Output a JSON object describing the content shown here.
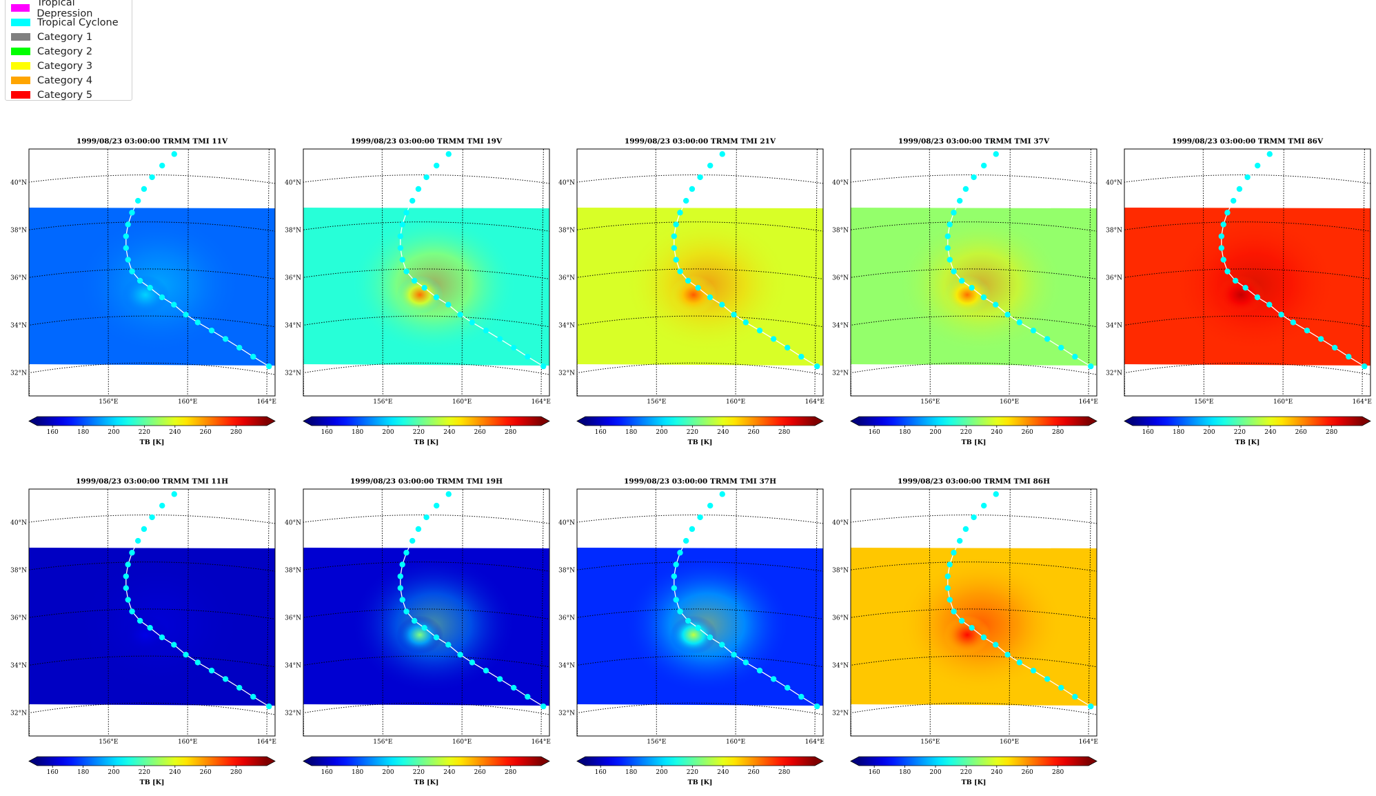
{
  "legend": {
    "items": [
      {
        "label": "Tropical Depression",
        "color": "#ff00ff"
      },
      {
        "label": "Tropical Cyclone",
        "color": "#00ffff"
      },
      {
        "label": "Category 1",
        "color": "#808080"
      },
      {
        "label": "Category 2",
        "color": "#00ff00"
      },
      {
        "label": "Category 3",
        "color": "#ffff00"
      },
      {
        "label": "Category 4",
        "color": "#ffa500"
      },
      {
        "label": "Category 5",
        "color": "#ff0000"
      }
    ]
  },
  "chart_data": [
    {
      "type": "heatmap",
      "title": "1999/08/23 03:00:00  TRMM TMI 11V",
      "colorbar_label": "TB [K]",
      "clim": [
        150,
        300
      ],
      "colorbar_ticks": [
        160,
        180,
        200,
        220,
        240,
        260,
        280
      ],
      "lat_ticks": [
        "32°N",
        "34°N",
        "36°N",
        "38°N",
        "40°N"
      ],
      "lon_ticks": [
        "156°E",
        "160°E",
        "164°E"
      ],
      "background_tb": 184,
      "core_tb": 200,
      "grid": true
    },
    {
      "type": "heatmap",
      "title": "1999/08/23 03:00:00  TRMM TMI 19V",
      "colorbar_label": "TB [K]",
      "clim": [
        150,
        300
      ],
      "colorbar_ticks": [
        160,
        180,
        200,
        220,
        240,
        260,
        280
      ],
      "lat_ticks": [
        "32°N",
        "34°N",
        "36°N",
        "38°N",
        "40°N"
      ],
      "lon_ticks": [
        "156°E",
        "160°E",
        "164°E"
      ],
      "background_tb": 212,
      "core_tb": 265,
      "grid": true
    },
    {
      "type": "heatmap",
      "title": "1999/08/23 03:00:00  TRMM TMI 21V",
      "colorbar_label": "TB [K]",
      "clim": [
        150,
        300
      ],
      "colorbar_ticks": [
        160,
        180,
        200,
        220,
        240,
        260,
        280
      ],
      "lat_ticks": [
        "32°N",
        "34°N",
        "36°N",
        "38°N",
        "40°N"
      ],
      "lon_ticks": [
        "156°E",
        "160°E",
        "164°E"
      ],
      "background_tb": 238,
      "core_tb": 268,
      "grid": true
    },
    {
      "type": "heatmap",
      "title": "1999/08/23 03:00:00  TRMM TMI 37V",
      "colorbar_label": "TB [K]",
      "clim": [
        150,
        300
      ],
      "colorbar_ticks": [
        160,
        180,
        200,
        220,
        240,
        260,
        280
      ],
      "lat_ticks": [
        "32°N",
        "34°N",
        "36°N",
        "38°N",
        "40°N"
      ],
      "lon_ticks": [
        "156°E",
        "160°E",
        "164°E"
      ],
      "background_tb": 228,
      "core_tb": 265,
      "grid": true
    },
    {
      "type": "heatmap",
      "title": "1999/08/23 03:00:00  TRMM TMI 86V",
      "colorbar_label": "TB [K]",
      "clim": [
        150,
        300
      ],
      "colorbar_ticks": [
        160,
        180,
        200,
        220,
        240,
        260,
        280
      ],
      "lat_ticks": [
        "32°N",
        "34°N",
        "36°N",
        "38°N",
        "40°N"
      ],
      "lon_ticks": [
        "156°E",
        "160°E",
        "164°E"
      ],
      "background_tb": 275,
      "core_tb": 290,
      "grid": true
    },
    {
      "type": "heatmap",
      "title": "1999/08/23 03:00:00  TRMM TMI 11H",
      "colorbar_label": "TB [K]",
      "clim": [
        150,
        300
      ],
      "colorbar_ticks": [
        160,
        180,
        200,
        220,
        240,
        260,
        280
      ],
      "lat_ticks": [
        "32°N",
        "34°N",
        "36°N",
        "38°N",
        "40°N"
      ],
      "lon_ticks": [
        "156°E",
        "160°E",
        "164°E"
      ],
      "background_tb": 160,
      "core_tb": 165,
      "grid": true
    },
    {
      "type": "heatmap",
      "title": "1999/08/23 03:00:00  TRMM TMI 19H",
      "colorbar_label": "TB [K]",
      "clim": [
        150,
        300
      ],
      "colorbar_ticks": [
        160,
        180,
        200,
        220,
        240,
        260,
        280
      ],
      "lat_ticks": [
        "32°N",
        "34°N",
        "36°N",
        "38°N",
        "40°N"
      ],
      "lon_ticks": [
        "156°E",
        "160°E",
        "164°E"
      ],
      "background_tb": 162,
      "core_tb": 225,
      "grid": true
    },
    {
      "type": "heatmap",
      "title": "1999/08/23 03:00:00  TRMM TMI 37H",
      "colorbar_label": "TB [K]",
      "clim": [
        150,
        300
      ],
      "colorbar_ticks": [
        160,
        180,
        200,
        220,
        240,
        260,
        280
      ],
      "lat_ticks": [
        "32°N",
        "34°N",
        "36°N",
        "38°N",
        "40°N"
      ],
      "lon_ticks": [
        "156°E",
        "160°E",
        "164°E"
      ],
      "background_tb": 175,
      "core_tb": 235,
      "grid": true
    },
    {
      "type": "heatmap",
      "title": "1999/08/23 03:00:00  TRMM TMI 86H",
      "colorbar_label": "TB [K]",
      "clim": [
        150,
        300
      ],
      "colorbar_ticks": [
        160,
        180,
        200,
        220,
        240,
        260,
        280
      ],
      "lat_ticks": [
        "32°N",
        "34°N",
        "36°N",
        "38°N",
        "40°N"
      ],
      "lon_ticks": [
        "156°E",
        "160°E",
        "164°E"
      ],
      "background_tb": 252,
      "core_tb": 280,
      "grid": true
    }
  ],
  "track": {
    "color": "#00ffff",
    "points": [
      [
        164.1,
        32.3
      ],
      [
        163.3,
        32.6
      ],
      [
        162.6,
        32.9
      ],
      [
        161.9,
        33.2
      ],
      [
        161.2,
        33.5
      ],
      [
        160.5,
        33.8
      ],
      [
        159.9,
        34.1
      ],
      [
        159.3,
        34.5
      ],
      [
        158.7,
        34.8
      ],
      [
        158.1,
        35.2
      ],
      [
        157.6,
        35.5
      ],
      [
        157.2,
        35.9
      ],
      [
        157.0,
        36.4
      ],
      [
        156.9,
        36.9
      ],
      [
        156.9,
        37.4
      ],
      [
        157.0,
        37.9
      ],
      [
        157.2,
        38.4
      ],
      [
        157.5,
        38.9
      ],
      [
        157.8,
        39.4
      ],
      [
        158.2,
        39.9
      ],
      [
        158.7,
        40.4
      ],
      [
        159.3,
        40.9
      ]
    ]
  }
}
